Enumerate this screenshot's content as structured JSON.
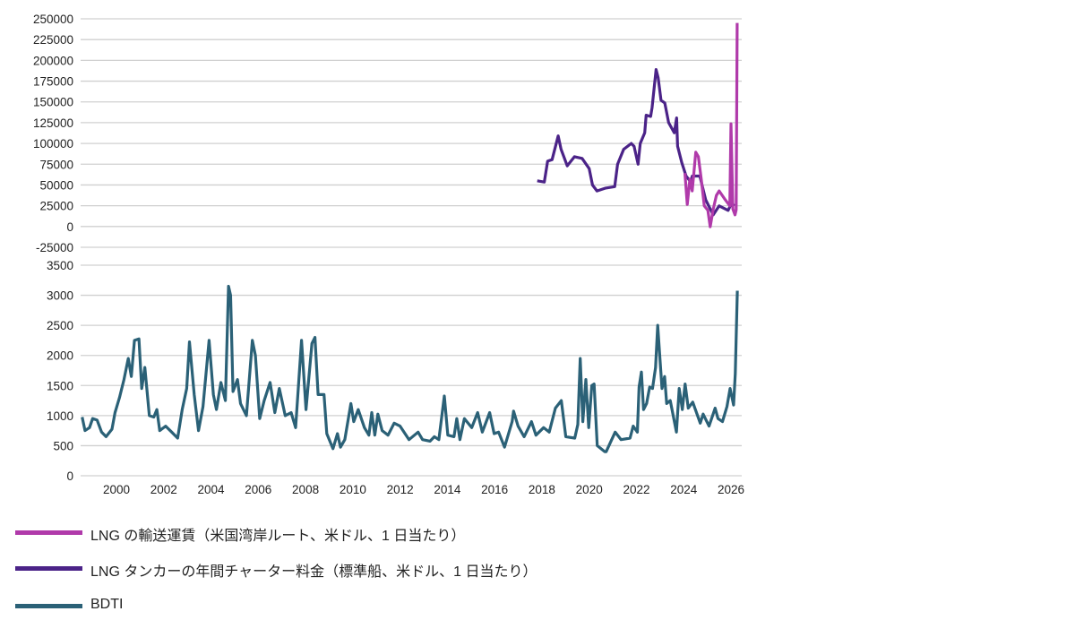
{
  "chart_data": {
    "type": "line",
    "title": "",
    "xlabel": "",
    "xlim": [
      1998.5,
      2026.45
    ],
    "x_ticks": [
      "2000",
      "2002",
      "2004",
      "2006",
      "2008",
      "2010",
      "2012",
      "2014",
      "2016",
      "2018",
      "2020",
      "2022",
      "2024",
      "2026"
    ],
    "panels": [
      {
        "ylim": [
          -25000,
          250000
        ],
        "y_ticks": [
          "-25000",
          "0",
          "25000",
          "50000",
          "75000",
          "100000",
          "125000",
          "150000",
          "175000",
          "200000",
          "225000",
          "250000"
        ],
        "grid": true,
        "series": [
          {
            "name": "LNG タンカーの年間チャーター料金（標準船、米ドル、1 日当たり）",
            "color": "#4b2388",
            "points": [
              [
                2017.8,
                55000
              ],
              [
                2018.1,
                53500
              ],
              [
                2018.24,
                78600
              ],
              [
                2018.43,
                80500
              ],
              [
                2018.69,
                109000
              ],
              [
                2018.81,
                93000
              ],
              [
                2019.07,
                73000
              ],
              [
                2019.38,
                84000
              ],
              [
                2019.7,
                82000
              ],
              [
                2020.0,
                69700
              ],
              [
                2020.14,
                50000
              ],
              [
                2020.33,
                42800
              ],
              [
                2020.7,
                46300
              ],
              [
                2021.08,
                48000
              ],
              [
                2021.2,
                75000
              ],
              [
                2021.46,
                93000
              ],
              [
                2021.78,
                100000
              ],
              [
                2021.9,
                96600
              ],
              [
                2022.07,
                75000
              ],
              [
                2022.16,
                100000
              ],
              [
                2022.35,
                112800
              ],
              [
                2022.41,
                134000
              ],
              [
                2022.6,
                132500
              ],
              [
                2022.66,
                143000
              ],
              [
                2022.83,
                189000
              ],
              [
                2022.92,
                179000
              ],
              [
                2023.04,
                152000
              ],
              [
                2023.2,
                148700
              ],
              [
                2023.36,
                125000
              ],
              [
                2023.6,
                112800
              ],
              [
                2023.7,
                130700
              ],
              [
                2023.74,
                96600
              ],
              [
                2023.92,
                76800
              ],
              [
                2024.1,
                60700
              ],
              [
                2024.3,
                53500
              ],
              [
                2024.36,
                60700
              ],
              [
                2024.68,
                60700
              ],
              [
                2024.93,
                32000
              ],
              [
                2025.25,
                14000
              ],
              [
                2025.5,
                24800
              ],
              [
                2025.88,
                19400
              ],
              [
                2026.03,
                28300
              ],
              [
                2026.14,
                24800
              ]
            ]
          },
          {
            "name": "LNG の輸送運賃（米国湾岸ルート、米ドル、1 日当たり）",
            "color": "#b03aaa",
            "points": [
              [
                2024.05,
                64300
              ],
              [
                2024.15,
                26600
              ],
              [
                2024.26,
                57100
              ],
              [
                2024.36,
                42800
              ],
              [
                2024.51,
                89400
              ],
              [
                2024.62,
                84000
              ],
              [
                2024.74,
                57100
              ],
              [
                2024.87,
                24800
              ],
              [
                2025.02,
                19400
              ],
              [
                2025.12,
                -300
              ],
              [
                2025.25,
                21000
              ],
              [
                2025.38,
                37400
              ],
              [
                2025.5,
                42800
              ],
              [
                2025.76,
                32000
              ],
              [
                2025.95,
                24800
              ],
              [
                2026.0,
                123600
              ],
              [
                2026.08,
                21000
              ],
              [
                2026.17,
                14000
              ],
              [
                2026.22,
                20000
              ],
              [
                2026.26,
                245000
              ]
            ]
          }
        ]
      },
      {
        "ylim": [
          0,
          3500
        ],
        "y_ticks": [
          "0",
          "500",
          "1000",
          "1500",
          "2000",
          "2500",
          "3000",
          "3500"
        ],
        "grid": true,
        "series": [
          {
            "name": "BDTI",
            "color": "#2b6177",
            "points": [
              [
                1998.55,
                975
              ],
              [
                1998.67,
                750
              ],
              [
                1998.86,
                800
              ],
              [
                1998.99,
                950
              ],
              [
                1999.18,
                925
              ],
              [
                1999.37,
                725
              ],
              [
                1999.56,
                650
              ],
              [
                1999.81,
                775
              ],
              [
                1999.94,
                1050
              ],
              [
                2000.13,
                1300
              ],
              [
                2000.32,
                1600
              ],
              [
                2000.5,
                1950
              ],
              [
                2000.63,
                1650
              ],
              [
                2000.76,
                2250
              ],
              [
                2000.95,
                2275
              ],
              [
                2001.07,
                1450
              ],
              [
                2001.2,
                1800
              ],
              [
                2001.39,
                1000
              ],
              [
                2001.58,
                975
              ],
              [
                2001.71,
                1100
              ],
              [
                2001.83,
                750
              ],
              [
                2002.08,
                825
              ],
              [
                2002.34,
                725
              ],
              [
                2002.59,
                625
              ],
              [
                2002.78,
                1100
              ],
              [
                2002.97,
                1450
              ],
              [
                2003.09,
                2225
              ],
              [
                2003.29,
                1350
              ],
              [
                2003.47,
                750
              ],
              [
                2003.66,
                1150
              ],
              [
                2003.92,
                2250
              ],
              [
                2004.1,
                1350
              ],
              [
                2004.23,
                1100
              ],
              [
                2004.42,
                1550
              ],
              [
                2004.61,
                1250
              ],
              [
                2004.74,
                3150
              ],
              [
                2004.83,
                3000
              ],
              [
                2004.93,
                1400
              ],
              [
                2005.12,
                1600
              ],
              [
                2005.25,
                1200
              ],
              [
                2005.5,
                1000
              ],
              [
                2005.75,
                2250
              ],
              [
                2005.88,
                2000
              ],
              [
                2006.06,
                950
              ],
              [
                2006.25,
                1250
              ],
              [
                2006.5,
                1550
              ],
              [
                2006.7,
                1050
              ],
              [
                2006.89,
                1450
              ],
              [
                2007.14,
                1000
              ],
              [
                2007.39,
                1050
              ],
              [
                2007.58,
                800
              ],
              [
                2007.83,
                2250
              ],
              [
                2008.02,
                1100
              ],
              [
                2008.27,
                2200
              ],
              [
                2008.4,
                2300
              ],
              [
                2008.53,
                1350
              ],
              [
                2008.78,
                1350
              ],
              [
                2008.9,
                700
              ],
              [
                2009.16,
                450
              ],
              [
                2009.35,
                700
              ],
              [
                2009.48,
                475
              ],
              [
                2009.66,
                600
              ],
              [
                2009.92,
                1200
              ],
              [
                2010.04,
                900
              ],
              [
                2010.23,
                1100
              ],
              [
                2010.49,
                800
              ],
              [
                2010.68,
                675
              ],
              [
                2010.8,
                1050
              ],
              [
                2010.93,
                675
              ],
              [
                2011.06,
                1025
              ],
              [
                2011.24,
                750
              ],
              [
                2011.49,
                675
              ],
              [
                2011.75,
                875
              ],
              [
                2012.0,
                825
              ],
              [
                2012.38,
                600
              ],
              [
                2012.76,
                725
              ],
              [
                2012.95,
                600
              ],
              [
                2013.27,
                575
              ],
              [
                2013.45,
                650
              ],
              [
                2013.64,
                600
              ],
              [
                2013.87,
                1325
              ],
              [
                2014.02,
                675
              ],
              [
                2014.28,
                650
              ],
              [
                2014.4,
                950
              ],
              [
                2014.53,
                600
              ],
              [
                2014.72,
                950
              ],
              [
                2015.03,
                800
              ],
              [
                2015.28,
                1050
              ],
              [
                2015.48,
                725
              ],
              [
                2015.79,
                1050
              ],
              [
                2015.98,
                700
              ],
              [
                2016.17,
                725
              ],
              [
                2016.42,
                475
              ],
              [
                2016.74,
                900
              ],
              [
                2016.8,
                1075
              ],
              [
                2016.99,
                825
              ],
              [
                2017.25,
                650
              ],
              [
                2017.56,
                900
              ],
              [
                2017.75,
                675
              ],
              [
                2018.07,
                800
              ],
              [
                2018.31,
                725
              ],
              [
                2018.57,
                1125
              ],
              [
                2018.82,
                1250
              ],
              [
                2019.01,
                650
              ],
              [
                2019.39,
                625
              ],
              [
                2019.52,
                850
              ],
              [
                2019.62,
                1950
              ],
              [
                2019.73,
                900
              ],
              [
                2019.86,
                1600
              ],
              [
                2019.98,
                800
              ],
              [
                2020.11,
                1500
              ],
              [
                2020.21,
                1525
              ],
              [
                2020.34,
                500
              ],
              [
                2020.66,
                400
              ],
              [
                2020.72,
                400
              ],
              [
                2021.1,
                725
              ],
              [
                2021.35,
                600
              ],
              [
                2021.73,
                625
              ],
              [
                2021.86,
                825
              ],
              [
                2022.04,
                725
              ],
              [
                2022.11,
                1475
              ],
              [
                2022.21,
                1725
              ],
              [
                2022.3,
                1100
              ],
              [
                2022.43,
                1200
              ],
              [
                2022.56,
                1475
              ],
              [
                2022.68,
                1450
              ],
              [
                2022.81,
                1800
              ],
              [
                2022.9,
                2500
              ],
              [
                2023.0,
                1900
              ],
              [
                2023.08,
                1450
              ],
              [
                2023.19,
                1650
              ],
              [
                2023.28,
                1200
              ],
              [
                2023.43,
                1250
              ],
              [
                2023.69,
                725
              ],
              [
                2023.81,
                1450
              ],
              [
                2023.94,
                1100
              ],
              [
                2024.06,
                1525
              ],
              [
                2024.19,
                1125
              ],
              [
                2024.38,
                1225
              ],
              [
                2024.7,
                875
              ],
              [
                2024.82,
                1025
              ],
              [
                2025.07,
                825
              ],
              [
                2025.33,
                1125
              ],
              [
                2025.45,
                950
              ],
              [
                2025.64,
                900
              ],
              [
                2025.83,
                1150
              ],
              [
                2025.96,
                1450
              ],
              [
                2026.11,
                1175
              ],
              [
                2026.18,
                1700
              ],
              [
                2026.27,
                3075
              ]
            ]
          }
        ]
      }
    ],
    "legend": {
      "placement": "bottom-left",
      "entries": [
        {
          "label": "LNG の輸送運賃（米国湾岸ルート、米ドル、1 日当たり）",
          "color": "#b03aaa"
        },
        {
          "label": "LNG タンカーの年間チャーター料金（標準船、米ドル、1 日当たり）",
          "color": "#4b2388"
        },
        {
          "label": "BDTI",
          "color": "#2b6177"
        }
      ]
    }
  }
}
